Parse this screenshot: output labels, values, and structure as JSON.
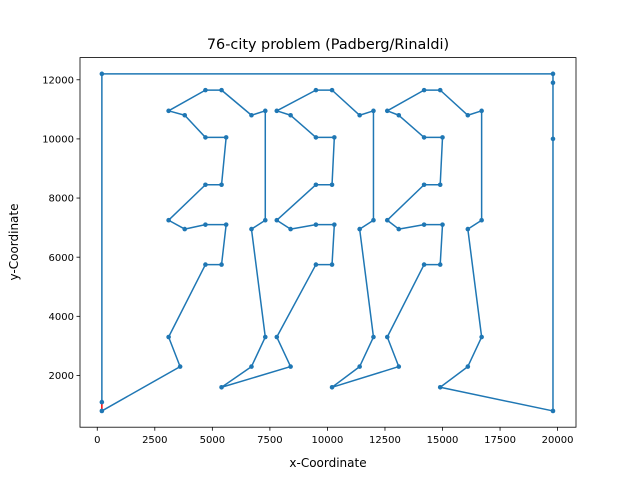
{
  "chart_data": {
    "type": "line",
    "title": "76-city problem (Padberg/Rinaldi)",
    "xlabel": "x-Coordinate",
    "ylabel": "y-Coordinate",
    "xlim": [
      -750,
      20800
    ],
    "ylim": [
      250,
      12750
    ],
    "xticks": [
      0,
      2500,
      5000,
      7500,
      10000,
      12500,
      15000,
      17500,
      20000
    ],
    "xtick_labels": [
      "0",
      "2500",
      "5000",
      "7500",
      "10000",
      "12500",
      "15000",
      "17500",
      "20000"
    ],
    "yticks": [
      2000,
      4000,
      6000,
      8000,
      10000,
      12000
    ],
    "ytick_labels": [
      "2000",
      "4000",
      "6000",
      "8000",
      "10000",
      "12000"
    ],
    "grid": false,
    "colors": {
      "tour": "#1f77b4",
      "closing": "#ff0000"
    },
    "tour": [
      [
        200,
        800
      ],
      [
        3600,
        2300
      ],
      [
        3100,
        3300
      ],
      [
        4700,
        5750
      ],
      [
        5400,
        5750
      ],
      [
        5600,
        7100
      ],
      [
        4700,
        7100
      ],
      [
        3800,
        6950
      ],
      [
        3100,
        7250
      ],
      [
        4700,
        8450
      ],
      [
        5400,
        8450
      ],
      [
        5600,
        10050
      ],
      [
        4700,
        10050
      ],
      [
        3800,
        10800
      ],
      [
        3100,
        10950
      ],
      [
        4700,
        11650
      ],
      [
        5400,
        11650
      ],
      [
        6700,
        10800
      ],
      [
        7300,
        10950
      ],
      [
        7300,
        7250
      ],
      [
        6700,
        6950
      ],
      [
        7300,
        3300
      ],
      [
        6700,
        2300
      ],
      [
        5400,
        1600
      ],
      [
        8400,
        2300
      ],
      [
        7800,
        3300
      ],
      [
        9500,
        5750
      ],
      [
        10200,
        5750
      ],
      [
        10300,
        7100
      ],
      [
        9500,
        7100
      ],
      [
        8400,
        6950
      ],
      [
        7800,
        7250
      ],
      [
        9500,
        8450
      ],
      [
        10200,
        8450
      ],
      [
        10300,
        10050
      ],
      [
        9500,
        10050
      ],
      [
        8400,
        10800
      ],
      [
        7800,
        10950
      ],
      [
        9500,
        11650
      ],
      [
        10200,
        11650
      ],
      [
        11400,
        10800
      ],
      [
        12000,
        10950
      ],
      [
        12000,
        7250
      ],
      [
        11400,
        6950
      ],
      [
        12000,
        3300
      ],
      [
        11400,
        2300
      ],
      [
        10200,
        1600
      ],
      [
        13100,
        2300
      ],
      [
        12600,
        3300
      ],
      [
        14200,
        5750
      ],
      [
        14900,
        5750
      ],
      [
        15000,
        7100
      ],
      [
        14200,
        7100
      ],
      [
        13100,
        6950
      ],
      [
        12600,
        7250
      ],
      [
        14200,
        8450
      ],
      [
        14900,
        8450
      ],
      [
        15000,
        10050
      ],
      [
        14200,
        10050
      ],
      [
        13100,
        10800
      ],
      [
        12600,
        10950
      ],
      [
        14200,
        11650
      ],
      [
        14900,
        11650
      ],
      [
        16100,
        10800
      ],
      [
        16700,
        10950
      ],
      [
        16700,
        7250
      ],
      [
        16100,
        6950
      ],
      [
        16700,
        3300
      ],
      [
        16100,
        2300
      ],
      [
        14900,
        1600
      ],
      [
        19800,
        800
      ],
      [
        19800,
        10000
      ],
      [
        19800,
        11900
      ],
      [
        19800,
        12200
      ],
      [
        200,
        12200
      ],
      [
        200,
        1100
      ]
    ],
    "closing_segment": [
      [
        200,
        1100
      ],
      [
        200,
        800
      ]
    ]
  }
}
